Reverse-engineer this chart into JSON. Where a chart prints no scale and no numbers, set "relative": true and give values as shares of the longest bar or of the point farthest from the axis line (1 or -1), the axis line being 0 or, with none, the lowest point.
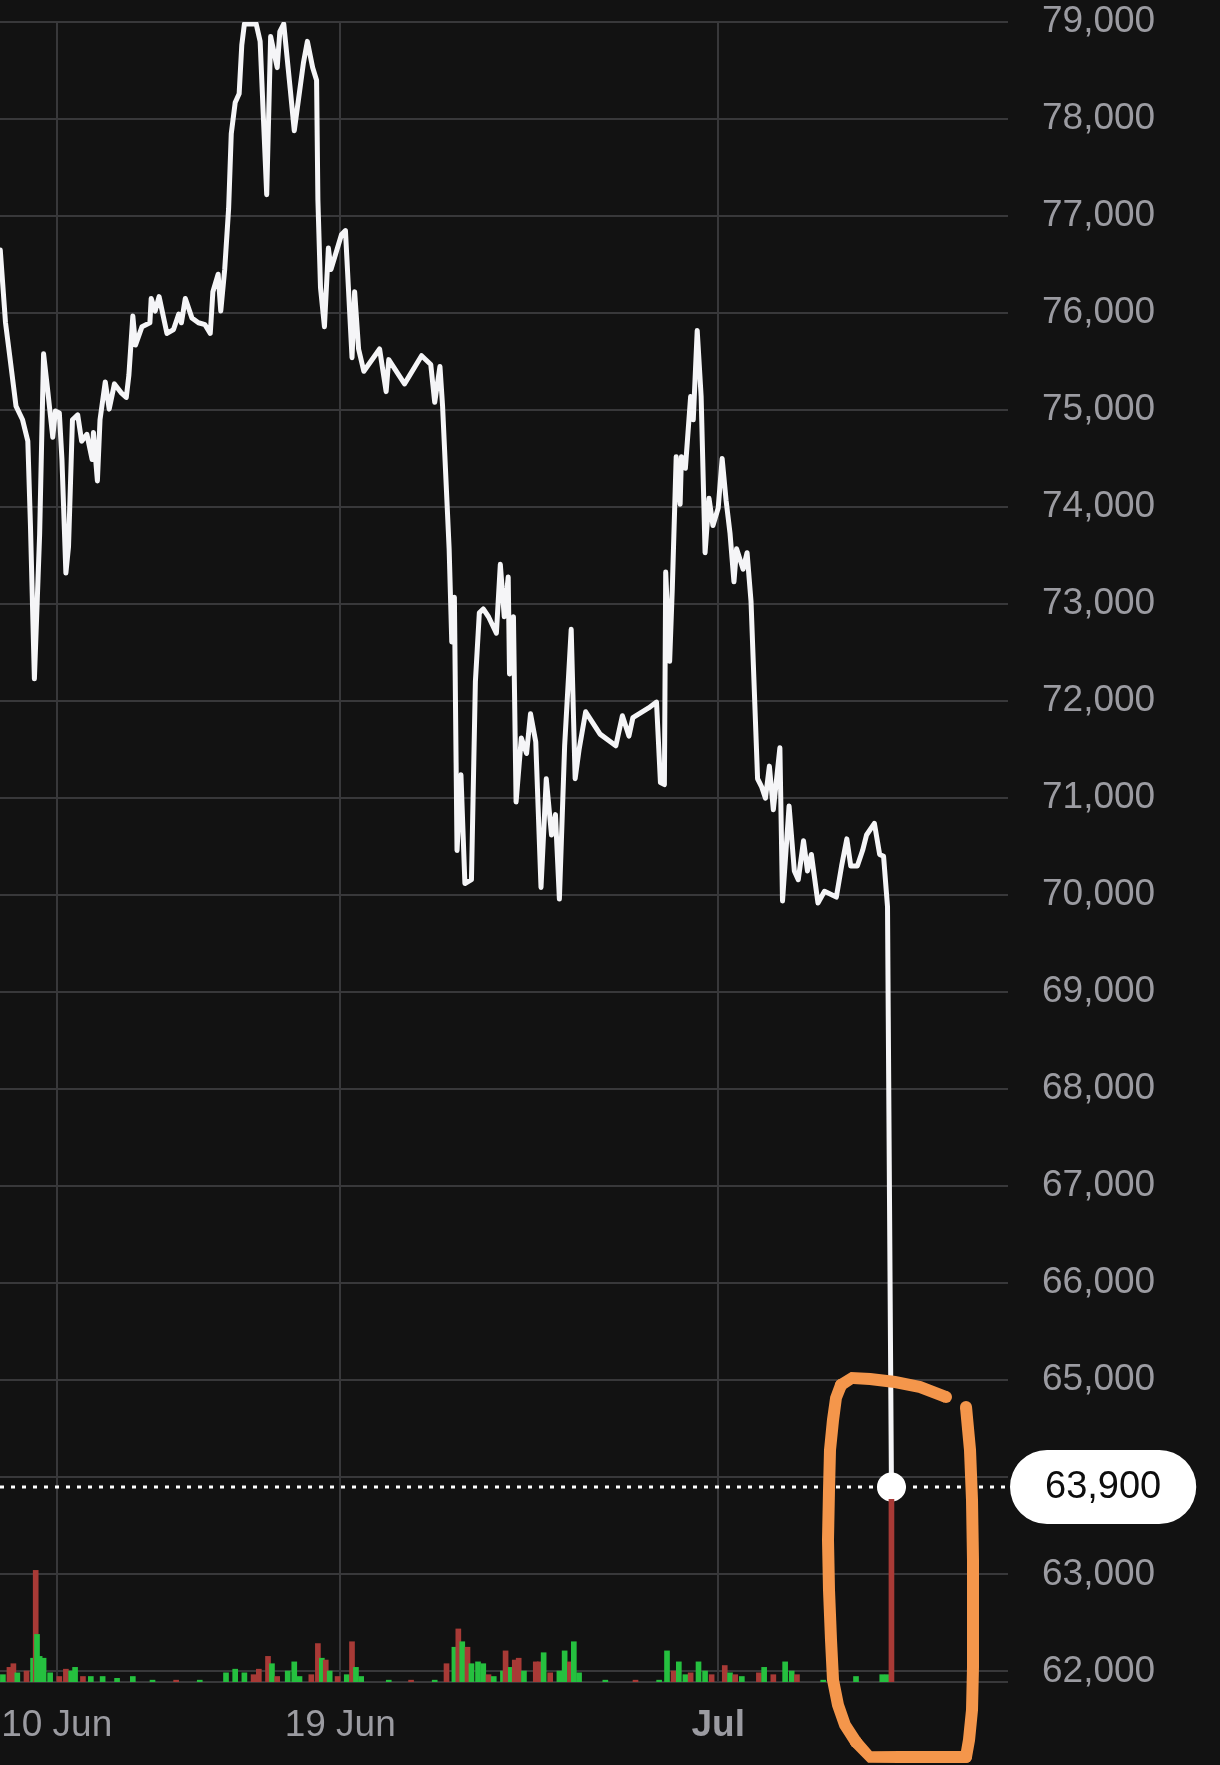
{
  "chart_data": [
    {
      "type": "line",
      "x": [
        "--06-08T05:00",
        "--06-08T09:00",
        "--06-08T12:00",
        "--06-08T17:00",
        "--06-08T22:00",
        "--06-09T02:00",
        "--06-09T04:00",
        "--06-09T07:00",
        "--06-09T11:00",
        "--06-09T14:00",
        "--06-09T17:00",
        "--06-09T21:00",
        "--06-09T23:00",
        "--06-10T02:00",
        "--06-10T04:00",
        "--06-10T07:00",
        "--06-10T09:00",
        "--06-10T12:00",
        "--06-10T16:00",
        "--06-10T19:00",
        "--06-10T23:00",
        "--06-11T03:00",
        "--06-11T04:00",
        "--06-11T07:00",
        "--06-11T09:00",
        "--06-11T13:00",
        "--06-11T16:00",
        "--06-11T20:00",
        "--06-12T01:00",
        "--06-12T05:00",
        "--06-12T07:00",
        "--06-12T10:00",
        "--06-12T12:00",
        "--06-12T17:00",
        "--06-12T23:00",
        "--06-13T00:00",
        "--06-13T03:00",
        "--06-13T06:00",
        "--06-13T12:00",
        "--06-13T17:00",
        "--06-13T21:00",
        "--06-13T23:00",
        "--06-14T02:00",
        "--06-14T07:00",
        "--06-14T12:00",
        "--06-14T17:00",
        "--06-14T21:00",
        "--06-14T23:00",
        "--06-15T03:00",
        "--06-15T05:00",
        "--06-15T08:00",
        "--06-15T11:00",
        "--06-15T13:00",
        "--06-15T16:00",
        "--06-15T19:00",
        "--06-15T21:00",
        "--06-15T23:00",
        "--06-16T08:00",
        "--06-16T11:00",
        "--06-16T16:00",
        "--06-16T19:00",
        "--06-17T00:00",
        "--06-17T02:00",
        "--06-17T05:00",
        "--06-17T10:00",
        "--06-17T13:00",
        "--06-17T20:00",
        "--06-17T23:00",
        "--06-18T03:00",
        "--06-18T06:00",
        "--06-18T07:00",
        "--06-18T09:00",
        "--06-18T12:00",
        "--06-18T15:00",
        "--06-18T17:00",
        "--06-19T01:00",
        "--06-19T04:00",
        "--06-19T09:00",
        "--06-19T11:00",
        "--06-19T14:00",
        "--06-19T18:00",
        "--06-20T06:00",
        "--06-20T11:00",
        "--06-20T13:00",
        "--06-21T01:00",
        "--06-21T14:00",
        "--06-21T21:00",
        "--06-22T00:00",
        "--06-22T04:00",
        "--06-22T06:00",
        "--06-22T11:00",
        "--06-22T13:00",
        "--06-22T15:00",
        "--06-22T17:00",
        "--06-22T20:00",
        "--06-22T23:00",
        "--06-23T04:00",
        "--06-23T07:00",
        "--06-23T10:00",
        "--06-23T13:00",
        "--06-23T17:00",
        "--06-23T23:00",
        "--06-24T02:00",
        "--06-24T05:00",
        "--06-24T08:00",
        "--06-24T09:00",
        "--06-24T12:00",
        "--06-24T14:00",
        "--06-24T18:00",
        "--06-24T22:00",
        "--06-25T01:00",
        "--06-25T05:00",
        "--06-25T09:00",
        "--06-25T13:00",
        "--06-25T17:00",
        "--06-25T20:00",
        "--06-25T23:00",
        "--06-26T03:00",
        "--06-26T08:00",
        "--06-26T11:00",
        "--06-26T14:00",
        "--06-26T19:00",
        "--06-27T06:00",
        "--06-27T18:00",
        "--06-27T23:00",
        "--06-28T04:00",
        "--06-28T07:00",
        "--06-28T19:00",
        "--06-29T01:00",
        "--06-29T04:00",
        "--06-29T07:00",
        "--06-29T08:00",
        "--06-29T11:00",
        "--06-29T13:00",
        "--06-29T16:00",
        "--06-29T19:00",
        "--06-29T20:00",
        "--06-29T23:00",
        "--06-30T03:00",
        "--06-30T05:00",
        "--06-30T08:00",
        "--06-30T11:00",
        "--06-30T14:00",
        "--06-30T17:00",
        "--06-30T20:00",
        "--07-01T00:00",
        "--07-01T03:00",
        "--07-01T06:00",
        "--07-01T09:00",
        "--07-01T12:00",
        "--07-01T14:00",
        "--07-01T19:00",
        "--07-01T22:00",
        "--07-02T01:00",
        "--07-02T06:00",
        "--07-02T09:00",
        "--07-02T12:00",
        "--07-02T15:00",
        "--07-02T18:00",
        "--07-02T23:00",
        "--07-03T01:00",
        "--07-03T06:00",
        "--07-03T10:00",
        "--07-03T13:00",
        "--07-03T17:00",
        "--07-03T20:00",
        "--07-03T23:00",
        "--07-04T04:00",
        "--07-04T09:00",
        "--07-04T18:00",
        "--07-04T22:00",
        "--07-05T02:00",
        "--07-05T05:00",
        "--07-05T10:00",
        "--07-05T14:00",
        "--07-05T17:00",
        "--07-05T23:00",
        "--07-06T03:00",
        "--07-06T06:00",
        "--07-06T09:00",
        "--07-06T12:00"
      ],
      "series": [
        {
          "color": "#f5f5f7",
          "values": [
            76650,
            75900,
            75580,
            75040,
            74900,
            74680,
            73810,
            72230,
            73720,
            75580,
            75220,
            74720,
            74990,
            74970,
            74490,
            73320,
            73590,
            74900,
            74950,
            74680,
            74750,
            74490,
            74770,
            74270,
            74900,
            75290,
            75010,
            75270,
            75180,
            75130,
            75360,
            75970,
            75670,
            75860,
            75900,
            76150,
            76020,
            76170,
            75790,
            75830,
            75990,
            75900,
            76150,
            75950,
            75900,
            75880,
            75790,
            76220,
            76400,
            76020,
            76450,
            77080,
            77850,
            78170,
            78260,
            78760,
            78980,
            78980,
            78800,
            77220,
            78850,
            78530,
            78900,
            78980,
            78300,
            77880,
            78580,
            78800,
            78530,
            78400,
            77170,
            76260,
            75860,
            76670,
            76450,
            76810,
            76850,
            75540,
            76220,
            75630,
            75400,
            75630,
            75190,
            75520,
            75270,
            75560,
            75470,
            75080,
            75450,
            75040,
            73570,
            72610,
            73070,
            70460,
            71240,
            70120,
            70160,
            72200,
            72910,
            72950,
            72870,
            72700,
            73410,
            72870,
            73280,
            72280,
            72870,
            70960,
            71620,
            71460,
            71870,
            71580,
            70080,
            71200,
            70620,
            70830,
            69960,
            71540,
            72740,
            71200,
            71500,
            71890,
            71660,
            71540,
            71850,
            71640,
            71830,
            71930,
            71990,
            71160,
            71140,
            73330,
            72410,
            73150,
            74520,
            74030,
            74520,
            74400,
            75140,
            74900,
            75820,
            75140,
            73530,
            74090,
            73810,
            73990,
            74500,
            74070,
            73730,
            73230,
            73570,
            73360,
            73530,
            73030,
            71200,
            71120,
            71000,
            71330,
            70880,
            71520,
            69940,
            70920,
            70250,
            70160,
            70560,
            70250,
            70420,
            69920,
            70040,
            69980,
            70300,
            70580,
            70300,
            70300,
            70460,
            70620,
            70740,
            70420,
            70400,
            69880,
            63900
          ]
        },
        {
          "type": "scatter",
          "x": [
            "--07-06T12:00"
          ],
          "values": [
            63900
          ],
          "color": "#ffffff",
          "marker": "circle"
        }
      ],
      "xlim": [
        "--06-08T04:48",
        "--07-10T04:48"
      ],
      "xticks": [
        {
          "value": "--06-10",
          "label": "10 Jun"
        },
        {
          "value": "--06-19",
          "label": "19 Jun"
        },
        {
          "value": "--07-01",
          "label": "Jul"
        }
      ],
      "ylim": [
        61890,
        79000
      ],
      "yticks": [
        {
          "value": 62000,
          "label": "62,000"
        },
        {
          "value": 63000,
          "label": "63,000"
        },
        {
          "value": 64000,
          "label": null
        },
        {
          "value": 65000,
          "label": "65,000"
        },
        {
          "value": 66000,
          "label": "66,000"
        },
        {
          "value": 67000,
          "label": "67,000"
        },
        {
          "value": 68000,
          "label": "68,000"
        },
        {
          "value": 69000,
          "label": "69,000"
        },
        {
          "value": 70000,
          "label": "70,000"
        },
        {
          "value": 71000,
          "label": "71,000"
        },
        {
          "value": 72000,
          "label": "72,000"
        },
        {
          "value": 73000,
          "label": "73,000"
        },
        {
          "value": 74000,
          "label": "74,000"
        },
        {
          "value": 75000,
          "label": "75,000"
        },
        {
          "value": 76000,
          "label": "76,000"
        },
        {
          "value": 77000,
          "label": "77,000"
        },
        {
          "value": 78000,
          "label": "78,000"
        },
        {
          "value": 79000,
          "label": "79,000"
        }
      ],
      "grid": true,
      "ref_lines": [
        {
          "axis": "y",
          "value": 63900,
          "label": "63,900",
          "color": "#ffffff",
          "line_style": "dotted"
        }
      ]
    },
    {
      "type": "bar",
      "relative": true,
      "tick_labels": false,
      "xlim": [
        "--06-08T04:48",
        "--07-10T04:48"
      ],
      "x": [
        "--06-08T07:00",
        "--06-08T12:00",
        "--06-08T15:00",
        "--06-08T18:00",
        "--06-09T01:00",
        "--06-09T06:00",
        "--06-09T08:00",
        "--06-09T09:00",
        "--06-09T11:00",
        "--06-09T14:00",
        "--06-09T19:00",
        "--06-10T02:00",
        "--06-10T07:00",
        "--06-10T11:00",
        "--06-10T14:00",
        "--06-10T20:00",
        "--06-11T02:00",
        "--06-11T11:00",
        "--06-11T22:00",
        "--06-12T10:00",
        "--06-13T01:00",
        "--06-13T19:00",
        "--06-14T13:00",
        "--06-15T09:00",
        "--06-15T16:00",
        "--06-15T23:00",
        "--06-16T06:00",
        "--06-16T10:00",
        "--06-16T17:00",
        "--06-16T20:00",
        "--06-17T00:00",
        "--06-17T08:00",
        "--06-17T13:00",
        "--06-17T17:00",
        "--06-18T02:00",
        "--06-18T07:00",
        "--06-18T10:00",
        "--06-18T13:00",
        "--06-18T16:00",
        "--06-18T22:00",
        "--06-19T05:00",
        "--06-19T09:00",
        "--06-19T12:00",
        "--06-19T16:00",
        "--06-20T13:00",
        "--06-21T06:00",
        "--06-22T00:00",
        "--06-22T09:00",
        "--06-22T15:00",
        "--06-22T18:00",
        "--06-22T21:00",
        "--06-23T01:00",
        "--06-23T04:00",
        "--06-23T09:00",
        "--06-23T13:00",
        "--06-23T17:00",
        "--06-23T21:00",
        "--06-24T04:00",
        "--06-24T06:00",
        "--06-24T10:00",
        "--06-24T13:00",
        "--06-24T16:00",
        "--06-24T20:00",
        "--06-25T05:00",
        "--06-25T08:00",
        "--06-25T11:00",
        "--06-25T16:00",
        "--06-25T23:00",
        "--06-26T03:00",
        "--06-26T07:00",
        "--06-26T10:00",
        "--06-26T14:00",
        "--06-27T10:00",
        "--06-28T09:00",
        "--06-29T03:00",
        "--06-29T09:00",
        "--06-29T14:00",
        "--06-29T18:00",
        "--06-29T23:00",
        "--06-30T03:00",
        "--06-30T09:00",
        "--06-30T14:00",
        "--06-30T19:00",
        "--07-01T05:00",
        "--07-01T09:00",
        "--07-01T13:00",
        "--07-01T18:00",
        "--07-02T07:00",
        "--07-02T11:00",
        "--07-02T18:00",
        "--07-03T03:00",
        "--07-03T08:00",
        "--07-03T12:00",
        "--07-04T08:00",
        "--07-05T09:00",
        "--07-06T05:00",
        "--07-06T09:00",
        "--07-06T12:00"
      ],
      "values": [
        0.04,
        0.08,
        0.1,
        0.05,
        0.06,
        0.13,
        0.61,
        0.26,
        0.14,
        0.13,
        0.05,
        0.03,
        0.07,
        0.06,
        0.08,
        0.03,
        0.03,
        0.03,
        0.02,
        0.03,
        0.01,
        0.01,
        0.01,
        0.05,
        0.07,
        0.05,
        0.04,
        0.07,
        0.14,
        0.1,
        0.03,
        0.06,
        0.11,
        0.03,
        0.04,
        0.21,
        0.13,
        0.12,
        0.06,
        0.03,
        0.04,
        0.22,
        0.08,
        0.03,
        0.01,
        0.01,
        0.01,
        0.1,
        0.19,
        0.29,
        0.22,
        0.19,
        0.1,
        0.11,
        0.1,
        0.04,
        0.03,
        0.06,
        0.17,
        0.08,
        0.12,
        0.13,
        0.06,
        0.11,
        0.11,
        0.16,
        0.05,
        0.06,
        0.17,
        0.11,
        0.22,
        0.05,
        0.01,
        0.01,
        0.01,
        0.17,
        0.06,
        0.11,
        0.04,
        0.05,
        0.11,
        0.06,
        0.04,
        0.09,
        0.05,
        0.04,
        0.03,
        0.05,
        0.08,
        0.04,
        0.11,
        0.06,
        0.04,
        0.01,
        0.03,
        0.04,
        0.04,
        1
      ],
      "colors": [
        "#25c03f",
        "#a83a36",
        "#a83a36",
        "#25c03f",
        "#a83a36",
        "#25c03f",
        "#a83a36",
        "#25c03f",
        "#25c03f",
        "#25c03f",
        "#25c03f",
        "#a83a36",
        "#a83a36",
        "#25c03f",
        "#25c03f",
        "#a83a36",
        "#25c03f",
        "#25c03f",
        "#25c03f",
        "#25c03f",
        "#25c03f",
        "#a83a36",
        "#25c03f",
        "#25c03f",
        "#25c03f",
        "#25c03f",
        "#a83a36",
        "#a83a36",
        "#a83a36",
        "#25c03f",
        "#a83a36",
        "#25c03f",
        "#25c03f",
        "#25c03f",
        "#a83a36",
        "#a83a36",
        "#25c03f",
        "#a83a36",
        "#25c03f",
        "#a83a36",
        "#25c03f",
        "#a83a36",
        "#25c03f",
        "#25c03f",
        "#25c03f",
        "#a83a36",
        "#25c03f",
        "#a83a36",
        "#25c03f",
        "#a83a36",
        "#25c03f",
        "#a83a36",
        "#25c03f",
        "#25c03f",
        "#25c03f",
        "#a83a36",
        "#25c03f",
        "#25c03f",
        "#a83a36",
        "#25c03f",
        "#a83a36",
        "#a83a36",
        "#25c03f",
        "#a83a36",
        "#a83a36",
        "#25c03f",
        "#a83a36",
        "#25c03f",
        "#25c03f",
        "#a83a36",
        "#25c03f",
        "#25c03f",
        "#25c03f",
        "#a83a36",
        "#25c03f",
        "#25c03f",
        "#a83a36",
        "#25c03f",
        "#25c03f",
        "#a83a36",
        "#25c03f",
        "#25c03f",
        "#a83a36",
        "#a83a36",
        "#25c03f",
        "#a83a36",
        "#25c03f",
        "#a83a36",
        "#25c03f",
        "#a83a36",
        "#25c03f",
        "#25c03f",
        "#a83a36",
        "#25c03f",
        "#25c03f",
        "#25c03f",
        "#25c03f",
        "#a83a36"
      ]
    }
  ]
}
